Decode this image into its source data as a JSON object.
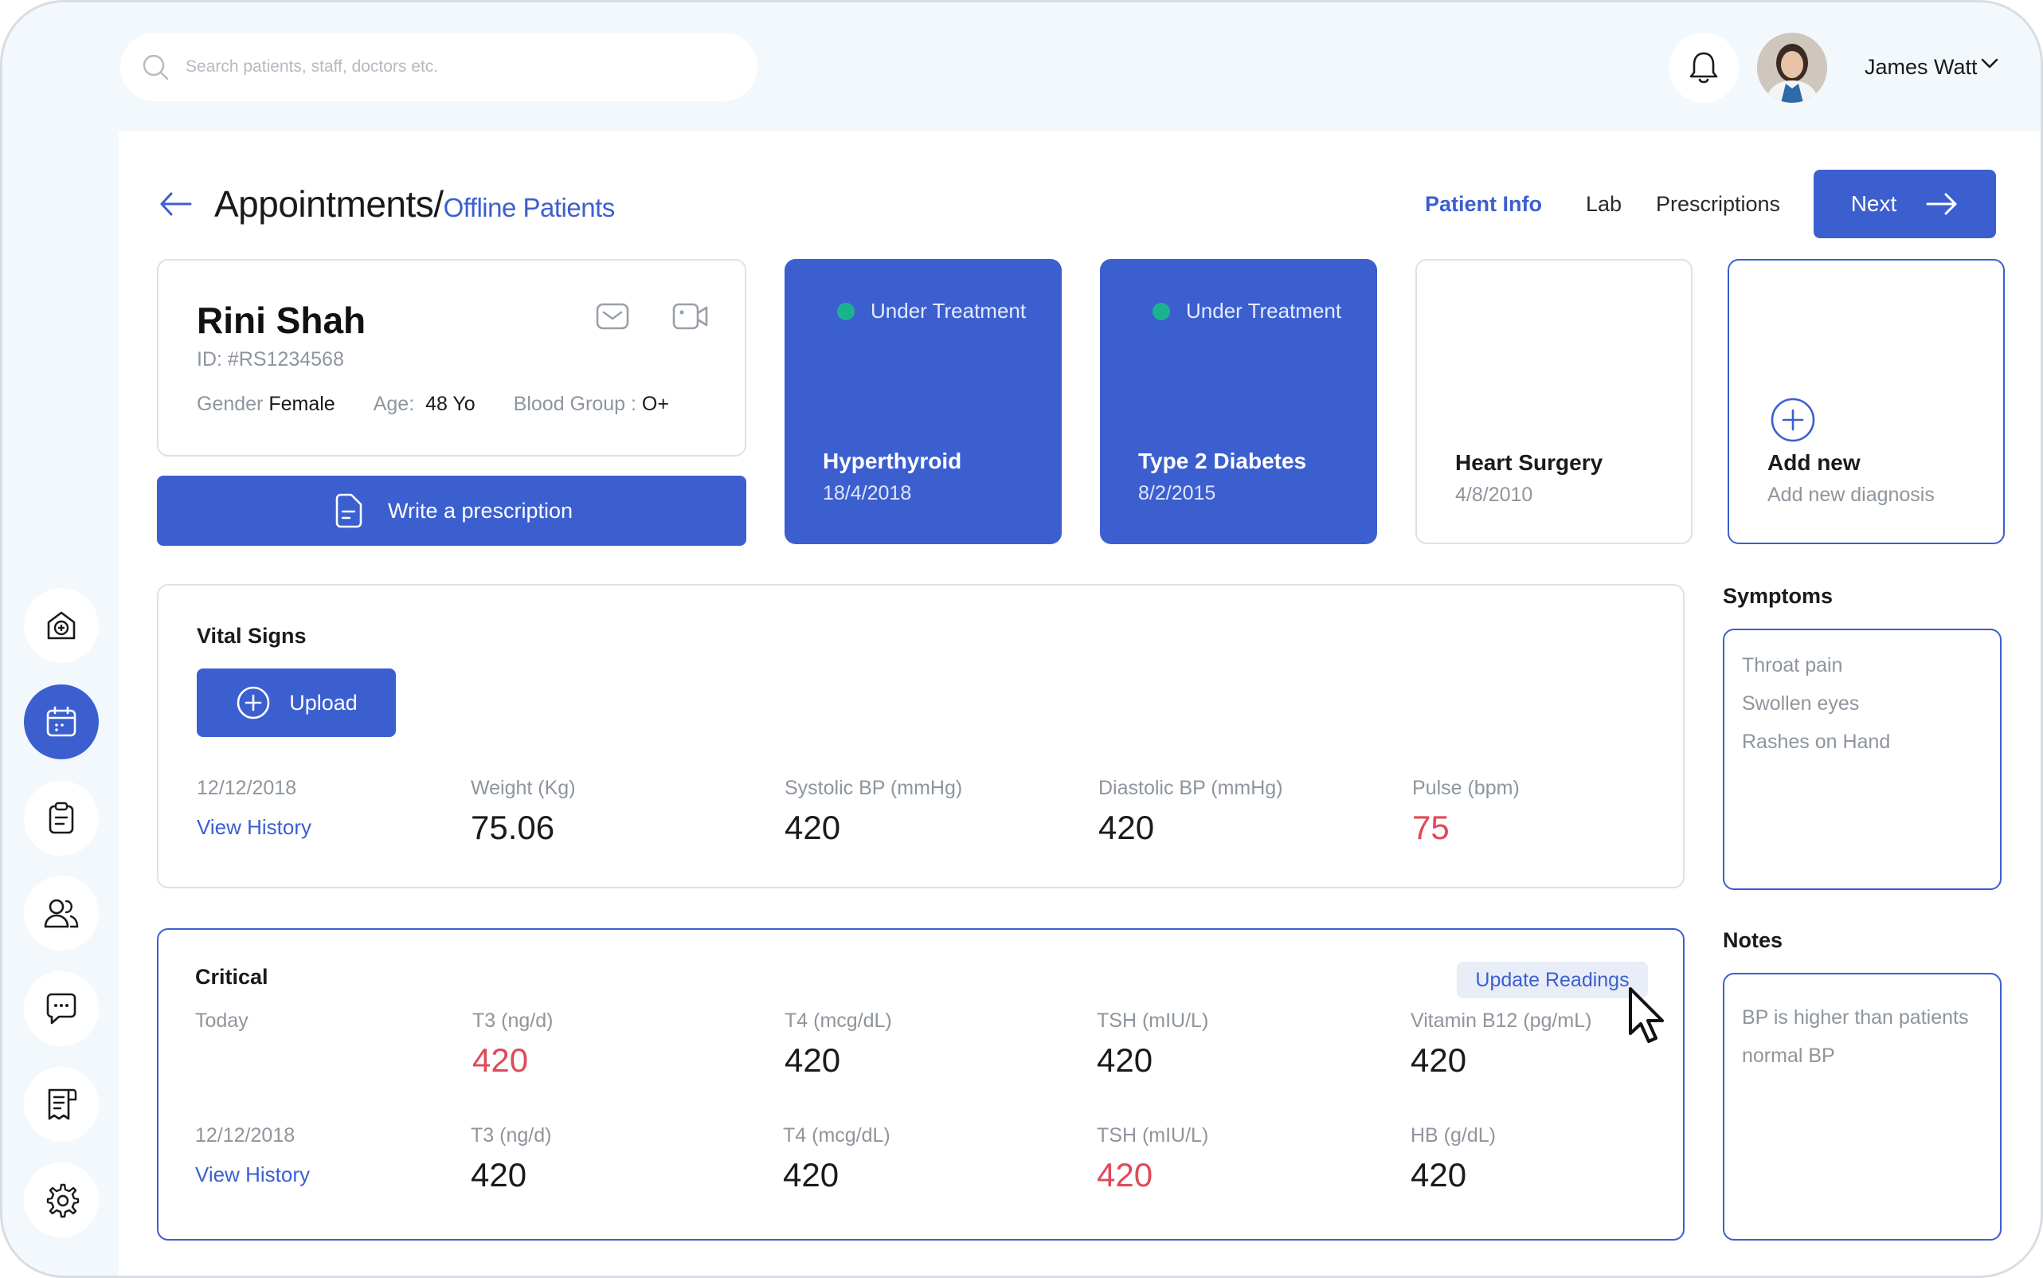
{
  "search": {
    "placeholder": "Search patients, staff, doctors etc."
  },
  "user": {
    "name": "James Watt"
  },
  "breadcrumb": {
    "main": "Appointments/",
    "sub": "Offline Patients"
  },
  "tabs": [
    {
      "label": "Patient Info",
      "active": true
    },
    {
      "label": "Lab",
      "active": false
    },
    {
      "label": "Prescriptions",
      "active": false
    }
  ],
  "next_label": "Next",
  "patient": {
    "name": "Rini Shah",
    "id": "ID: #RS1234568",
    "gender_label": "Gender",
    "gender": "Female",
    "age_label": "Age:",
    "age": "48 Yo",
    "blood_label": "Blood Group :",
    "blood": "O+"
  },
  "write_prescription_label": "Write a prescription",
  "diagnoses": [
    {
      "status": "Under Treatment",
      "name": "Hyperthyroid",
      "date": "18/4/2018",
      "active": true
    },
    {
      "status": "Under Treatment",
      "name": "Type 2 Diabetes",
      "date": "8/2/2015",
      "active": true
    },
    {
      "status": "",
      "name": "Heart Surgery",
      "date": "4/8/2010",
      "active": false
    }
  ],
  "add_diagnosis": {
    "title": "Add new",
    "subtitle": "Add new diagnosis"
  },
  "vitals": {
    "title": "Vital Signs",
    "upload_label": "Upload",
    "date": "12/12/2018",
    "history_label": "View History",
    "items": [
      {
        "label": "Weight (Kg)",
        "value": "75.06"
      },
      {
        "label": "Systolic BP (mmHg)",
        "value": "420"
      },
      {
        "label": "Diastolic BP (mmHg)",
        "value": "420"
      },
      {
        "label": "Pulse (bpm)",
        "value": "75"
      }
    ]
  },
  "critical": {
    "title": "Critical",
    "update_label": "Update Readings",
    "today_label": "Today",
    "past_date": "12/12/2018",
    "history_label": "View History",
    "today": [
      {
        "label": "T3 (ng/d)",
        "value": "420"
      },
      {
        "label": "T4 (mcg/dL)",
        "value": "420"
      },
      {
        "label": "TSH (mIU/L)",
        "value": "420"
      },
      {
        "label": "Vitamin B12 (pg/mL)",
        "value": "420"
      }
    ],
    "past": [
      {
        "label": "T3 (ng/d)",
        "value": "420"
      },
      {
        "label": "T4 (mcg/dL)",
        "value": "420"
      },
      {
        "label": "TSH (mIU/L)",
        "value": "420"
      },
      {
        "label": "HB (g/dL)",
        "value": "420"
      }
    ]
  },
  "symptoms": {
    "title": "Symptoms",
    "items": [
      "Throat pain",
      "Swollen eyes",
      "Rashes on Hand"
    ]
  },
  "notes": {
    "title": "Notes",
    "text": "BP is higher than patients normal BP"
  },
  "colors": {
    "accent": "#3c5fcf",
    "alert": "#e04a58",
    "status_dot": "#1bb38f"
  },
  "icons": {
    "sidebar": [
      "hospital-icon",
      "calendar-icon",
      "clipboard-icon",
      "users-icon",
      "chat-icon",
      "report-icon",
      "gear-icon"
    ]
  }
}
